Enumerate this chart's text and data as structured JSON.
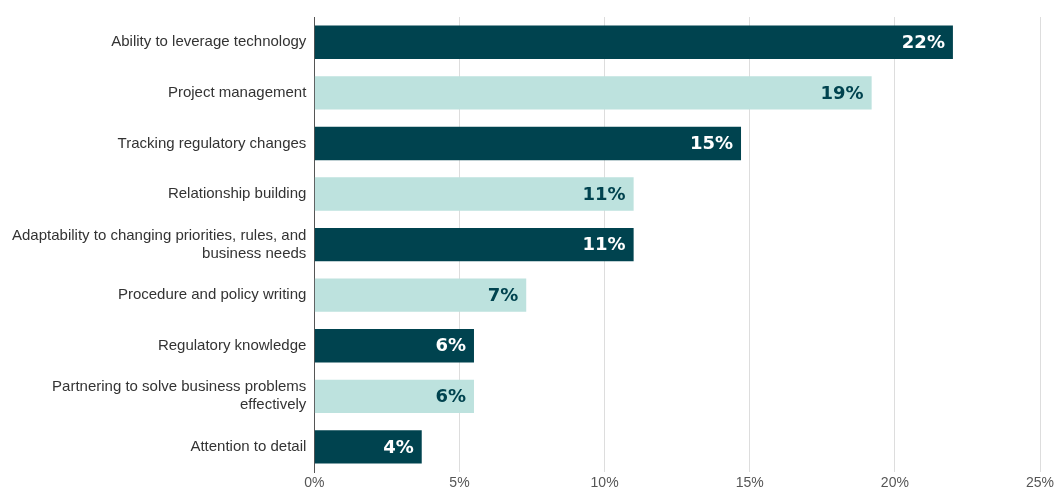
{
  "chart_data": {
    "type": "bar",
    "orientation": "horizontal",
    "categories": [
      "Ability to leverage technology",
      "Project management",
      "Tracking regulatory changes",
      "Relationship building",
      "Adaptability to changing priorities, rules, and business needs",
      "Procedure and policy writing",
      "Regulatory knowledge",
      "Partnering to solve business problems effectively",
      "Attention to detail"
    ],
    "values": [
      22.0,
      19.2,
      14.7,
      11.0,
      11.0,
      7.3,
      5.5,
      5.5,
      3.7
    ],
    "value_labels": [
      "22%",
      "19%",
      "15%",
      "11%",
      "11%",
      "7%",
      "6%",
      "6%",
      "4%"
    ],
    "colors": [
      "#00434f",
      "#bde2de",
      "#00434f",
      "#bde2de",
      "#00434f",
      "#bde2de",
      "#00434f",
      "#bde2de",
      "#00434f"
    ],
    "xlim": [
      0,
      25
    ],
    "xticks": [
      {
        "value": 0,
        "label": "0%"
      },
      {
        "value": 5,
        "label": "5%"
      },
      {
        "value": 10,
        "label": "10%"
      },
      {
        "value": 15,
        "label": "15%"
      },
      {
        "value": 20,
        "label": "20%"
      },
      {
        "value": 25,
        "label": "25%"
      }
    ],
    "grid": "x",
    "legend": false
  }
}
